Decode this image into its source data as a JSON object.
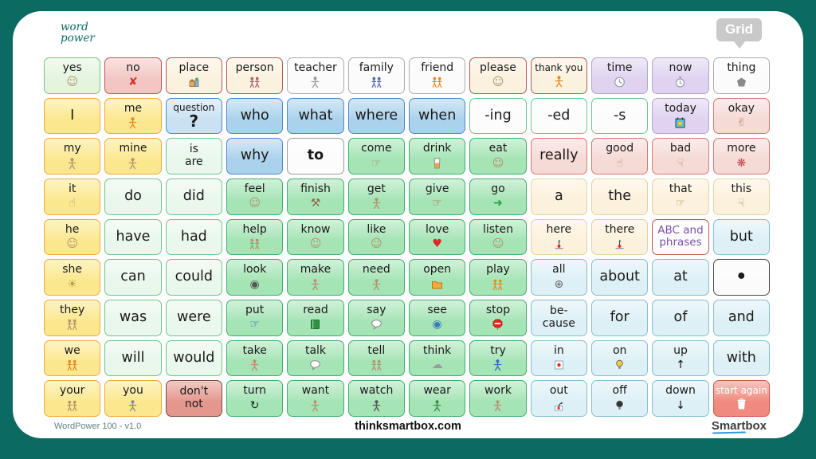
{
  "header": {
    "logo_line1": "word",
    "logo_line2": "power",
    "grid_badge": "Grid"
  },
  "footer": {
    "left": "WordPower 100 - v1.0",
    "center": "thinksmartbox.com",
    "right": "Smartbox"
  },
  "palette": {
    "background_teal": "#0b6a61",
    "card_white": "#ffffff",
    "badge_gray": "#c9c9c9",
    "logo_teal": "#0e6a62",
    "smartbox_underline_blue": "#2e9ad6"
  },
  "grid": {
    "columns": 12,
    "rows": 9,
    "cells": [
      {
        "label": "yes",
        "style": "lightGreen",
        "icon": {
          "name": "smiley-face",
          "glyph": "☺",
          "color": "#b5916e"
        }
      },
      {
        "label": "no",
        "style": "red",
        "icon": {
          "name": "x-mark",
          "glyph": "✘",
          "color": "#d8352a"
        }
      },
      {
        "label": "place",
        "style": "cream",
        "icon": {
          "name": "buildings",
          "shape": "house",
          "color": "#8a7a5a"
        }
      },
      {
        "label": "person",
        "style": "cream",
        "icon": {
          "name": "two-people",
          "shape": "people",
          "color": "#b05a6a"
        }
      },
      {
        "label": "teacher",
        "style": "white",
        "icon": {
          "name": "teacher-figure",
          "shape": "person",
          "color": "#9a9a9a"
        }
      },
      {
        "label": "family",
        "style": "white",
        "icon": {
          "name": "family-group",
          "shape": "people",
          "color": "#4a66b8"
        }
      },
      {
        "label": "friend",
        "style": "white",
        "icon": {
          "name": "two-friends",
          "shape": "people",
          "color": "#e8861f"
        }
      },
      {
        "label": "please",
        "style": "cream",
        "icon": {
          "name": "smiley-face",
          "glyph": "☺",
          "color": "#b5916e"
        }
      },
      {
        "label": "thank you",
        "style": "cream",
        "icon": {
          "name": "thanking-person",
          "shape": "person",
          "color": "#e8861f"
        }
      },
      {
        "label": "time",
        "style": "purple",
        "icon": {
          "name": "clock",
          "shape": "clock",
          "color": "#9a9ab0"
        }
      },
      {
        "label": "now",
        "style": "purple",
        "icon": {
          "name": "stopwatch",
          "shape": "stopwatch",
          "color": "#9a9ab0"
        }
      },
      {
        "label": "thing",
        "style": "white",
        "icon": {
          "name": "thing-blob",
          "shape": "blob",
          "color": "#8a8a8a"
        }
      },
      {
        "label": "I",
        "style": "yellow",
        "big": true
      },
      {
        "label": "me",
        "style": "yellow",
        "icon": {
          "name": "me-person",
          "shape": "person",
          "color": "#e8861f"
        }
      },
      {
        "label": "question",
        "style": "blueLight",
        "sub": "?",
        "subBig": true
      },
      {
        "label": "who",
        "style": "blue",
        "big": true
      },
      {
        "label": "what",
        "style": "blue",
        "big": true
      },
      {
        "label": "where",
        "style": "blue",
        "big": true
      },
      {
        "label": "when",
        "style": "blue",
        "big": true
      },
      {
        "label": "-ing",
        "style": "whiteGreen",
        "big": true
      },
      {
        "label": "-ed",
        "style": "whiteGreen",
        "big": true
      },
      {
        "label": "-s",
        "style": "whiteGreen",
        "big": true
      },
      {
        "label": "today",
        "style": "purple",
        "icon": {
          "name": "calendar-sun",
          "shape": "calendar",
          "color": "#5bc8ea"
        }
      },
      {
        "label": "okay",
        "style": "pink",
        "icon": {
          "name": "ok-hand-sign",
          "glyph": "✌",
          "color": "#b5916e"
        }
      },
      {
        "label": "my",
        "style": "yellow",
        "icon": {
          "name": "my-figure",
          "shape": "person",
          "color": "#b5916e"
        }
      },
      {
        "label": "mine",
        "style": "yellow",
        "icon": {
          "name": "mine-figure",
          "shape": "person",
          "color": "#b5916e"
        }
      },
      {
        "label": "is",
        "sub": "are",
        "style": "paleGreen"
      },
      {
        "label": "why",
        "style": "blue",
        "big": true
      },
      {
        "label": "to",
        "style": "whiteBold",
        "big": true
      },
      {
        "label": "come",
        "style": "green",
        "icon": {
          "name": "beckoning-hand",
          "glyph": "☞",
          "color": "#b5916e"
        }
      },
      {
        "label": "drink",
        "style": "green",
        "icon": {
          "name": "drink-glass",
          "shape": "glass",
          "color": "#f0a14b"
        }
      },
      {
        "label": "eat",
        "style": "green",
        "icon": {
          "name": "eating-face",
          "glyph": "☺",
          "color": "#b5916e"
        }
      },
      {
        "label": "really",
        "style": "pink",
        "big": true
      },
      {
        "label": "good",
        "style": "pink",
        "icon": {
          "name": "thumbs-up",
          "glyph": "☝",
          "color": "#b5916e"
        }
      },
      {
        "label": "bad",
        "style": "pink",
        "icon": {
          "name": "thumbs-down",
          "glyph": "☟",
          "color": "#b5916e"
        }
      },
      {
        "label": "more",
        "style": "pink",
        "icon": {
          "name": "more-hands",
          "glyph": "❋",
          "color": "#c04848"
        }
      },
      {
        "label": "it",
        "style": "yellow",
        "icon": {
          "name": "pointing-hand",
          "glyph": "☝",
          "color": "#b5916e"
        }
      },
      {
        "label": "do",
        "style": "paleGreen",
        "big": true
      },
      {
        "label": "did",
        "style": "paleGreen",
        "big": true
      },
      {
        "label": "feel",
        "style": "green",
        "icon": {
          "name": "feeling-faces",
          "glyph": "☺",
          "color": "#b5916e"
        }
      },
      {
        "label": "finish",
        "style": "green",
        "icon": {
          "name": "crossed-tools",
          "glyph": "⚒",
          "color": "#8a6a4a"
        }
      },
      {
        "label": "get",
        "style": "green",
        "icon": {
          "name": "get-figure",
          "shape": "person",
          "color": "#b5916e"
        }
      },
      {
        "label": "give",
        "style": "green",
        "icon": {
          "name": "giving-hands",
          "glyph": "☞",
          "color": "#c06030"
        }
      },
      {
        "label": "go",
        "style": "green",
        "icon": {
          "name": "go-arrow",
          "glyph": "➜",
          "color": "#28a04a"
        }
      },
      {
        "label": "a",
        "style": "peach",
        "big": true
      },
      {
        "label": "the",
        "style": "peach",
        "big": true
      },
      {
        "label": "that",
        "style": "peach",
        "icon": {
          "name": "that-hand",
          "glyph": "☞",
          "color": "#b5916e"
        }
      },
      {
        "label": "this",
        "style": "peach",
        "icon": {
          "name": "this-hand-down",
          "glyph": "☟",
          "color": "#b5916e"
        }
      },
      {
        "label": "he",
        "style": "yellow",
        "icon": {
          "name": "he-face",
          "glyph": "☺",
          "color": "#b5916e"
        }
      },
      {
        "label": "have",
        "style": "paleGreen",
        "big": true
      },
      {
        "label": "had",
        "style": "paleGreen",
        "big": true
      },
      {
        "label": "help",
        "style": "green",
        "icon": {
          "name": "helping-people",
          "shape": "people",
          "color": "#b5916e"
        }
      },
      {
        "label": "know",
        "style": "green",
        "icon": {
          "name": "knowing-head",
          "glyph": "☺",
          "color": "#b5916e"
        }
      },
      {
        "label": "like",
        "style": "green",
        "icon": {
          "name": "liking-face",
          "glyph": "☺",
          "color": "#b5916e"
        }
      },
      {
        "label": "love",
        "style": "green",
        "icon": {
          "name": "heart",
          "glyph": "♥",
          "color": "#e02424"
        }
      },
      {
        "label": "listen",
        "style": "green",
        "icon": {
          "name": "listening-head",
          "glyph": "☺",
          "color": "#b5916e"
        }
      },
      {
        "label": "here",
        "style": "peach",
        "icon": {
          "name": "here-pin",
          "shape": "pin",
          "color": "#e02b20"
        }
      },
      {
        "label": "there",
        "style": "peach",
        "icon": {
          "name": "there-pin",
          "shape": "pin",
          "color": "#e02b20"
        }
      },
      {
        "label": "ABC and",
        "sub": "phrases",
        "style": "abc"
      },
      {
        "label": "but",
        "style": "lightBlue",
        "big": true
      },
      {
        "label": "she",
        "style": "yellow",
        "icon": {
          "name": "sun-face",
          "glyph": "☀",
          "color": "#b89a3c"
        }
      },
      {
        "label": "can",
        "style": "paleGreen",
        "big": true
      },
      {
        "label": "could",
        "style": "paleGreen",
        "big": true
      },
      {
        "label": "look",
        "style": "green",
        "icon": {
          "name": "looking-eye",
          "glyph": "◉",
          "color": "#555555"
        }
      },
      {
        "label": "make",
        "style": "green",
        "icon": {
          "name": "making-figure",
          "shape": "person",
          "color": "#b5916e"
        }
      },
      {
        "label": "need",
        "style": "green",
        "icon": {
          "name": "needing-figure",
          "shape": "person",
          "color": "#b5916e"
        }
      },
      {
        "label": "open",
        "style": "green",
        "icon": {
          "name": "open-folder",
          "shape": "folder",
          "color": "#f5a93c"
        }
      },
      {
        "label": "play",
        "style": "green",
        "icon": {
          "name": "playing-children",
          "shape": "people",
          "color": "#e8861f"
        }
      },
      {
        "label": "all",
        "style": "lightBlue",
        "icon": {
          "name": "circle-plus",
          "glyph": "⊕",
          "color": "#666666"
        }
      },
      {
        "label": "about",
        "style": "lightBlue",
        "big": true
      },
      {
        "label": "at",
        "style": "lightBlue",
        "big": true
      },
      {
        "label": "•",
        "style": "period"
      },
      {
        "label": "they",
        "style": "yellow",
        "icon": {
          "name": "they-people",
          "shape": "people",
          "color": "#b5916e"
        }
      },
      {
        "label": "was",
        "style": "paleGreen",
        "big": true
      },
      {
        "label": "were",
        "style": "paleGreen",
        "big": true
      },
      {
        "label": "put",
        "style": "green",
        "icon": {
          "name": "putting-hand",
          "glyph": "☞",
          "color": "#3a68c0"
        }
      },
      {
        "label": "read",
        "style": "green",
        "icon": {
          "name": "book",
          "shape": "book",
          "color": "#2f9440"
        }
      },
      {
        "label": "say",
        "style": "green",
        "icon": {
          "name": "speech-bubble",
          "shape": "speech",
          "color": "#888888"
        }
      },
      {
        "label": "see",
        "style": "green",
        "icon": {
          "name": "eye",
          "glyph": "◉",
          "color": "#3a7ab8"
        }
      },
      {
        "label": "stop",
        "style": "green",
        "icon": {
          "name": "stop-sign",
          "shape": "stopsign",
          "color": "#e02b20"
        }
      },
      {
        "label": "be-",
        "sub": "cause",
        "style": "lightBlue"
      },
      {
        "label": "for",
        "style": "lightBlue",
        "big": true
      },
      {
        "label": "of",
        "style": "lightBlue",
        "big": true
      },
      {
        "label": "and",
        "style": "lightBlue",
        "big": true
      },
      {
        "label": "we",
        "style": "yellow",
        "icon": {
          "name": "we-people",
          "shape": "people",
          "color": "#e8861f"
        }
      },
      {
        "label": "will",
        "style": "paleGreen",
        "big": true
      },
      {
        "label": "would",
        "style": "paleGreen",
        "big": true
      },
      {
        "label": "take",
        "style": "green",
        "icon": {
          "name": "taking-figure",
          "shape": "person",
          "color": "#b5916e"
        }
      },
      {
        "label": "talk",
        "style": "green",
        "icon": {
          "name": "talking-bubble",
          "shape": "speech",
          "color": "#888888"
        }
      },
      {
        "label": "tell",
        "style": "green",
        "icon": {
          "name": "telling-people",
          "shape": "people",
          "color": "#b5916e"
        }
      },
      {
        "label": "think",
        "style": "green",
        "icon": {
          "name": "thought-bubble",
          "glyph": "☁",
          "color": "#9a9a9a"
        }
      },
      {
        "label": "try",
        "style": "green",
        "icon": {
          "name": "trying-figure",
          "shape": "person",
          "color": "#3a68c0"
        }
      },
      {
        "label": "in",
        "style": "lightBlue",
        "icon": {
          "name": "dot-in-box",
          "shape": "dotbox",
          "color": "#e02b20"
        }
      },
      {
        "label": "on",
        "style": "lightBlue",
        "icon": {
          "name": "lightbulb-on",
          "shape": "bulb",
          "color": "#f2cc3a"
        }
      },
      {
        "label": "up",
        "style": "lightBlue",
        "icon": {
          "name": "up-arrow",
          "glyph": "↑",
          "color": "#111111"
        }
      },
      {
        "label": "with",
        "style": "lightBlue",
        "big": true
      },
      {
        "label": "your",
        "style": "yellow",
        "icon": {
          "name": "your-people",
          "shape": "people",
          "color": "#b5916e"
        }
      },
      {
        "label": "you",
        "style": "yellow",
        "icon": {
          "name": "you-figure",
          "shape": "person",
          "color": "#8a8a8a"
        }
      },
      {
        "label": "don't",
        "sub": "not",
        "style": "darkRed"
      },
      {
        "label": "turn",
        "style": "green",
        "icon": {
          "name": "rotate-arrow",
          "glyph": "↻",
          "color": "#222222"
        }
      },
      {
        "label": "want",
        "style": "green",
        "icon": {
          "name": "wanting-figure",
          "shape": "person",
          "color": "#b5916e"
        }
      },
      {
        "label": "watch",
        "style": "green",
        "icon": {
          "name": "watching-figure",
          "shape": "person",
          "color": "#555555"
        }
      },
      {
        "label": "wear",
        "style": "green",
        "icon": {
          "name": "wearing-figure",
          "shape": "person",
          "color": "#3a8a4a"
        }
      },
      {
        "label": "work",
        "style": "green",
        "icon": {
          "name": "working-figure",
          "shape": "person",
          "color": "#b5916e"
        }
      },
      {
        "label": "out",
        "style": "lightBlue",
        "icon": {
          "name": "out-arrow",
          "shape": "arrowOut",
          "color": "#333333"
        }
      },
      {
        "label": "off",
        "style": "lightBlue",
        "icon": {
          "name": "lightbulb-off",
          "shape": "bulb",
          "color": "#333333"
        }
      },
      {
        "label": "down",
        "style": "lightBlue",
        "icon": {
          "name": "down-arrow",
          "glyph": "↓",
          "color": "#111111"
        }
      },
      {
        "label": "start again",
        "style": "startAgain",
        "icon": {
          "name": "trash-can",
          "shape": "trash",
          "color": "#ffffff"
        }
      }
    ]
  }
}
